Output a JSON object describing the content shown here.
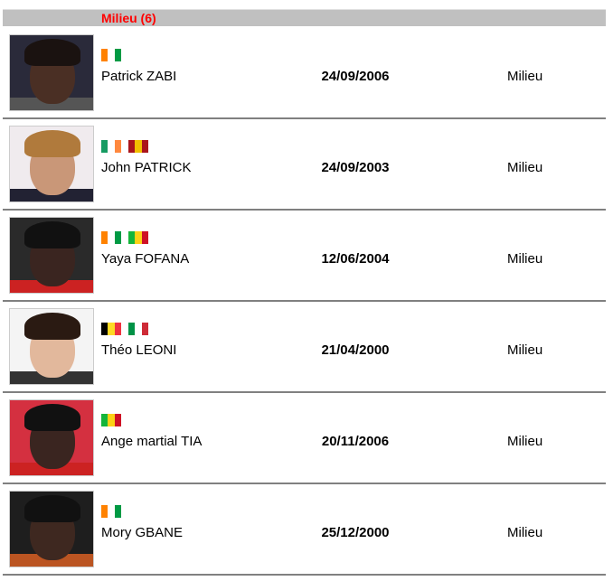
{
  "group": {
    "title": "Milieu (6)"
  },
  "flag_colors": {
    "civ": [
      "#ff8200",
      "#ffffff",
      "#009a44"
    ],
    "irl": [
      "#169b62",
      "#ffffff",
      "#ff883e"
    ],
    "esp": [
      "#aa151b",
      "#f1bf00",
      "#aa151b"
    ],
    "mli": [
      "#14b53a",
      "#fcd116",
      "#ce1126"
    ],
    "bel": [
      "#000000",
      "#fdda24",
      "#ef3340"
    ],
    "ita": [
      "#009246",
      "#ffffff",
      "#ce2b37"
    ]
  },
  "players": [
    {
      "name": "Patrick ZABI",
      "dob": "24/09/2006",
      "position": "Milieu",
      "flags": [
        "civ"
      ],
      "skin": "#4a2f24",
      "hair": "#1a1210",
      "bg": "#2a2a3a",
      "shirt": "#555"
    },
    {
      "name": "John PATRICK",
      "dob": "24/09/2003",
      "position": "Milieu",
      "flags": [
        "irl",
        "esp"
      ],
      "skin": "#c99778",
      "hair": "#b07a3c",
      "bg": "#f0ebee",
      "shirt": "#223"
    },
    {
      "name": "Yaya FOFANA",
      "dob": "12/06/2004",
      "position": "Milieu",
      "flags": [
        "civ",
        "mli"
      ],
      "skin": "#3a2520",
      "hair": "#111",
      "bg": "#2a2a2a",
      "shirt": "#c22"
    },
    {
      "name": "Théo LEONI",
      "dob": "21/04/2000",
      "position": "Milieu",
      "flags": [
        "bel",
        "ita"
      ],
      "skin": "#e2b89c",
      "hair": "#2a1a12",
      "bg": "#f4f4f4",
      "shirt": "#333"
    },
    {
      "name": "Ange martial TIA",
      "dob": "20/11/2006",
      "position": "Milieu",
      "flags": [
        "mli"
      ],
      "skin": "#3a2520",
      "hair": "#111",
      "bg": "#d43040",
      "shirt": "#c22"
    },
    {
      "name": "Mory GBANE",
      "dob": "25/12/2000",
      "position": "Milieu",
      "flags": [
        "civ"
      ],
      "skin": "#3e2820",
      "hair": "#111",
      "bg": "#1e1e1e",
      "shirt": "#b52"
    }
  ]
}
